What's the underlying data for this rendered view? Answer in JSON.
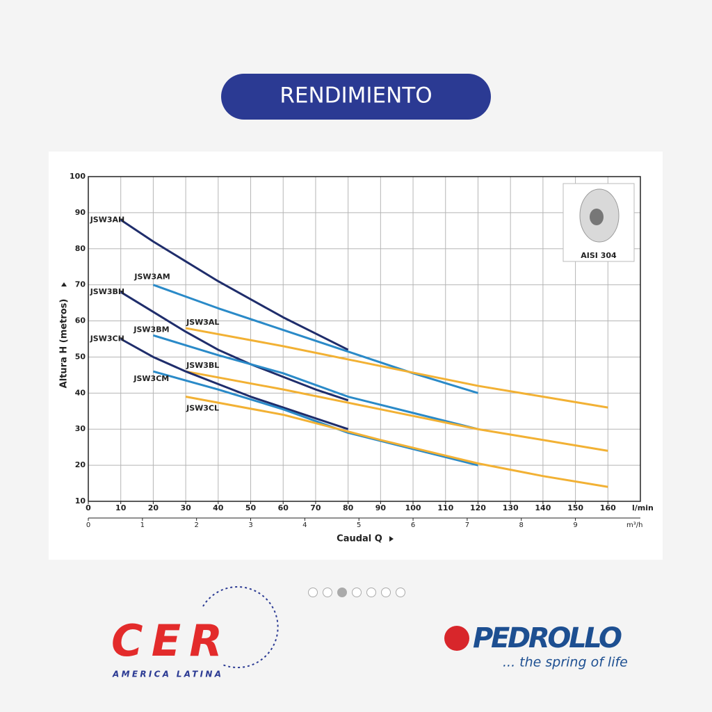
{
  "header": {
    "title": "RENDIMIENTO"
  },
  "chart_data": {
    "type": "line",
    "x_label": "Caudal Q",
    "y_label": "Altura H (metros)",
    "x_unit": "l/min",
    "x2_unit": "m³/h",
    "xlim": [
      0,
      170
    ],
    "xticks": [
      0,
      10,
      20,
      30,
      40,
      50,
      60,
      70,
      80,
      90,
      100,
      110,
      120,
      130,
      140,
      150,
      160
    ],
    "x2lim": [
      0,
      10.2
    ],
    "x2ticks": [
      0,
      1,
      2,
      3,
      4,
      5,
      6,
      7,
      8,
      9
    ],
    "ylim": [
      10,
      100
    ],
    "yticks": [
      10,
      20,
      30,
      40,
      50,
      60,
      70,
      80,
      90,
      100
    ],
    "grid": true,
    "inset_label": "AISI 304",
    "series": [
      {
        "name": "JSW3AH",
        "color": "#1f2d6b",
        "x": [
          10,
          20,
          30,
          40,
          50,
          60,
          70,
          80
        ],
        "values": [
          88,
          82,
          76.5,
          71,
          66,
          61,
          56.5,
          52
        ]
      },
      {
        "name": "JSW3AM",
        "color": "#2a8ac8",
        "x": [
          20,
          40,
          60,
          80,
          100,
          120
        ],
        "values": [
          70,
          63.5,
          57.5,
          51.5,
          45.5,
          40
        ]
      },
      {
        "name": "JSW3AL",
        "color": "#f2b134",
        "x": [
          30,
          60,
          90,
          120,
          140,
          160
        ],
        "values": [
          58,
          53,
          47.5,
          42,
          39,
          36
        ]
      },
      {
        "name": "JSW3BH",
        "color": "#1f2d6b",
        "x": [
          10,
          20,
          30,
          40,
          50,
          60,
          70,
          80
        ],
        "values": [
          68,
          62.5,
          57,
          52,
          48,
          44.5,
          41,
          38
        ]
      },
      {
        "name": "JSW3BM",
        "color": "#2a8ac8",
        "x": [
          20,
          40,
          60,
          80,
          100,
          120
        ],
        "values": [
          56,
          50.5,
          45.5,
          39,
          34.5,
          30
        ]
      },
      {
        "name": "JSW3BL",
        "color": "#f2b134",
        "x": [
          30,
          60,
          90,
          120,
          140,
          160
        ],
        "values": [
          46,
          41,
          35.5,
          30,
          27,
          24
        ]
      },
      {
        "name": "JSW3CH",
        "color": "#1f2d6b",
        "x": [
          10,
          20,
          30,
          40,
          50,
          60,
          70,
          80
        ],
        "values": [
          55,
          50,
          46,
          42.5,
          39,
          36,
          33,
          30
        ]
      },
      {
        "name": "JSW3CM",
        "color": "#2a8ac8",
        "x": [
          20,
          40,
          60,
          80,
          100,
          120
        ],
        "values": [
          46,
          41,
          35.5,
          29,
          24.5,
          20
        ]
      },
      {
        "name": "JSW3CL",
        "color": "#f2b134",
        "x": [
          30,
          60,
          90,
          120,
          140,
          160
        ],
        "values": [
          39,
          34,
          27,
          20.5,
          17,
          14
        ]
      }
    ]
  },
  "logos": {
    "left_main": "CER",
    "left_sub": "AMERICA LATINA",
    "right_main": "PEDROLLO",
    "right_sub": "... the spring of life"
  }
}
